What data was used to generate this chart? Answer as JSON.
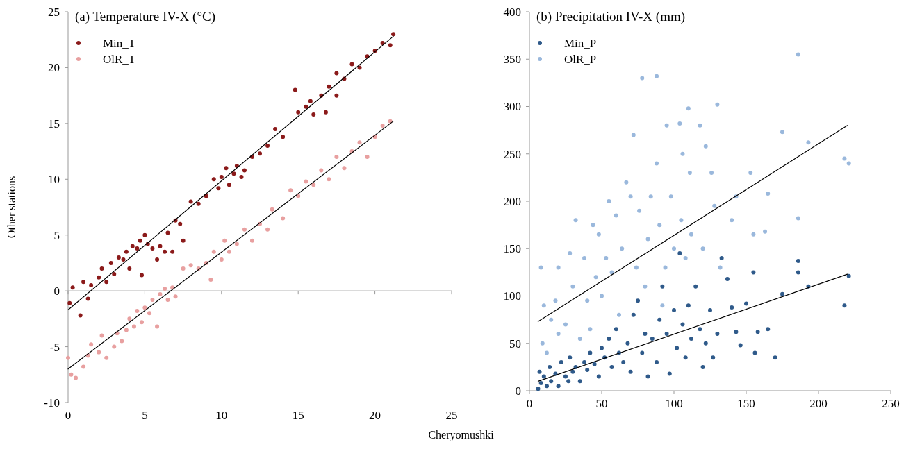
{
  "chart_data": [
    {
      "type": "scatter",
      "title": "(a) Temperature IV-X (°C)",
      "xlabel": "Cheryomushki",
      "ylabel": "Other stations",
      "xlim": [
        0,
        25
      ],
      "ylim": [
        -10,
        25
      ],
      "xticks": [
        0,
        5,
        10,
        15,
        20,
        25
      ],
      "yticks": [
        -10,
        -5,
        0,
        5,
        10,
        15,
        20,
        25
      ],
      "legend": "top left",
      "marker": "circle",
      "series": [
        {
          "name": "Min_T",
          "color": "#8b1a1a",
          "x": [
            0.1,
            0.3,
            0.8,
            1,
            1.3,
            1.5,
            2,
            2.2,
            2.5,
            2.8,
            3,
            3.3,
            3.6,
            3.8,
            4,
            4.2,
            4.5,
            4.7,
            4.8,
            5,
            5.2,
            5.5,
            5.8,
            6,
            6.3,
            6.5,
            6.8,
            7,
            7.3,
            7.5,
            8,
            8.5,
            9,
            9.5,
            9.8,
            10,
            10.3,
            10.5,
            10.8,
            11,
            11.3,
            11.5,
            12,
            12.5,
            13,
            13.5,
            14,
            14.8,
            15,
            15.5,
            15.8,
            16,
            16.5,
            16.8,
            17,
            17.5,
            17.5,
            18,
            18.5,
            19,
            19.5,
            20,
            20.5,
            21,
            21.2
          ],
          "values": [
            -1.1,
            0.3,
            -2.2,
            0.8,
            -0.7,
            0.5,
            1.2,
            2,
            0.8,
            2.5,
            1.5,
            3,
            2.8,
            3.5,
            2,
            4,
            3.8,
            4.5,
            1.4,
            5,
            4.2,
            3.8,
            2.8,
            4,
            3.5,
            5.2,
            3.5,
            6.3,
            6,
            4.5,
            8,
            7.8,
            8.5,
            10,
            9.2,
            10.2,
            11,
            9.5,
            10.5,
            11.2,
            10.2,
            10.8,
            12,
            12.3,
            13,
            14.5,
            13.8,
            18,
            16,
            16.5,
            17,
            15.8,
            17.5,
            16,
            18.3,
            17.5,
            19.5,
            19,
            20.3,
            20,
            21,
            21.5,
            22.2,
            22,
            23
          ]
        },
        {
          "name": "OlR_T",
          "color": "#e8a0a0",
          "x": [
            0,
            0.2,
            0.5,
            1,
            1.3,
            1.5,
            2,
            2.2,
            2.5,
            3,
            3.2,
            3.5,
            3.8,
            4,
            4.3,
            4.5,
            4.8,
            5,
            5.3,
            5.5,
            5.8,
            6,
            6.3,
            6.5,
            6.8,
            7,
            7.5,
            8,
            8.5,
            9,
            9.3,
            9.5,
            10,
            10.2,
            10.5,
            11,
            11.5,
            12,
            12.5,
            13,
            13.3,
            14,
            14.5,
            15,
            15.5,
            16,
            16.5,
            17,
            17.5,
            18,
            18.5,
            19,
            19.5,
            20,
            20.5,
            21
          ],
          "values": [
            -6,
            -7.5,
            -7.8,
            -6.8,
            -5.8,
            -4.8,
            -5.5,
            -4,
            -6,
            -5,
            -3.8,
            -4.5,
            -3.5,
            -2.5,
            -3.2,
            -1.8,
            -2.8,
            -1.5,
            -2,
            -0.8,
            -3.2,
            -0.3,
            0.2,
            -0.8,
            0.3,
            -0.5,
            2,
            2.3,
            2,
            2.5,
            1,
            3.5,
            2.8,
            4.5,
            3.5,
            4.2,
            5.5,
            4.5,
            6,
            5.5,
            7.3,
            6.5,
            9,
            8.5,
            9.8,
            9.5,
            10.8,
            10,
            12,
            11,
            12.5,
            13.3,
            12,
            13.8,
            14.8,
            15.2
          ]
        },
        {
          "type": "line",
          "marker": "none",
          "color": "#000000",
          "x": [
            0,
            21.2
          ],
          "values": [
            -1.7,
            22.8
          ]
        },
        {
          "type": "line",
          "marker": "none",
          "color": "#000000",
          "x": [
            0,
            21.2
          ],
          "values": [
            -7,
            15.2
          ]
        }
      ]
    },
    {
      "type": "scatter",
      "title": "(b) Precipitation IV-X (mm)",
      "xlim": [
        0,
        250
      ],
      "ylim": [
        0,
        400
      ],
      "xticks": [
        0,
        50,
        100,
        150,
        200,
        250
      ],
      "yticks": [
        0,
        50,
        100,
        150,
        200,
        250,
        300,
        350,
        400
      ],
      "legend": "top left",
      "marker": "circle",
      "series": [
        {
          "name": "Min_P",
          "color": "#2f5a8a",
          "x": [
            6,
            7,
            8,
            10,
            12,
            14,
            15,
            18,
            20,
            22,
            25,
            27,
            28,
            30,
            32,
            35,
            38,
            40,
            42,
            45,
            48,
            50,
            52,
            55,
            57,
            60,
            62,
            65,
            68,
            70,
            72,
            75,
            78,
            80,
            82,
            85,
            88,
            90,
            92,
            95,
            97,
            100,
            102,
            104,
            106,
            108,
            110,
            112,
            115,
            118,
            120,
            122,
            125,
            127,
            130,
            133,
            137,
            140,
            143,
            146,
            150,
            155,
            156,
            158,
            165,
            170,
            175,
            186,
            186,
            193,
            218,
            221
          ],
          "values": [
            2,
            20,
            8,
            15,
            5,
            25,
            10,
            18,
            5,
            30,
            15,
            10,
            35,
            20,
            25,
            10,
            30,
            22,
            40,
            28,
            15,
            45,
            35,
            55,
            25,
            65,
            40,
            30,
            50,
            20,
            80,
            95,
            40,
            60,
            15,
            55,
            30,
            75,
            110,
            60,
            18,
            85,
            45,
            145,
            70,
            35,
            90,
            55,
            110,
            65,
            25,
            50,
            85,
            35,
            60,
            140,
            118,
            88,
            62,
            48,
            92,
            125,
            40,
            62,
            65,
            35,
            102,
            137,
            125,
            110,
            90,
            121
          ]
        },
        {
          "name": "OlR_P",
          "color": "#9ab8dc",
          "x": [
            8,
            9,
            10,
            12,
            15,
            18,
            20,
            20,
            25,
            28,
            30,
            32,
            35,
            38,
            40,
            42,
            44,
            46,
            48,
            50,
            53,
            55,
            57,
            60,
            62,
            64,
            67,
            70,
            72,
            74,
            76,
            78,
            80,
            82,
            84,
            88,
            88,
            90,
            92,
            94,
            95,
            98,
            100,
            104,
            105,
            106,
            108,
            110,
            111,
            112,
            118,
            120,
            122,
            126,
            128,
            130,
            132,
            140,
            143,
            153,
            155,
            163,
            165,
            175,
            186,
            186,
            193,
            218,
            221
          ],
          "values": [
            130,
            50,
            90,
            40,
            75,
            95,
            60,
            130,
            70,
            145,
            110,
            180,
            55,
            140,
            95,
            65,
            175,
            120,
            165,
            100,
            140,
            200,
            125,
            185,
            80,
            150,
            220,
            205,
            270,
            130,
            190,
            330,
            110,
            160,
            205,
            332,
            240,
            175,
            90,
            130,
            280,
            205,
            150,
            282,
            180,
            250,
            140,
            298,
            230,
            165,
            280,
            150,
            258,
            230,
            195,
            302,
            130,
            180,
            205,
            230,
            165,
            168,
            208,
            273,
            355,
            182,
            262,
            245,
            240
          ]
        },
        {
          "type": "line",
          "marker": "none",
          "color": "#000000",
          "x": [
            6,
            220
          ],
          "values": [
            73,
            280
          ]
        },
        {
          "type": "line",
          "marker": "none",
          "color": "#000000",
          "x": [
            6,
            220
          ],
          "values": [
            10,
            123
          ]
        }
      ]
    }
  ]
}
